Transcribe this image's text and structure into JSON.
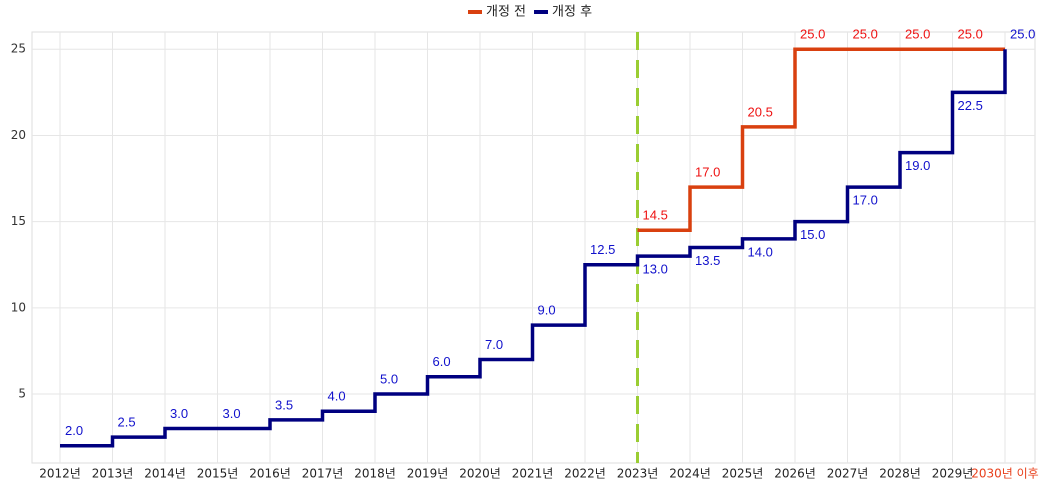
{
  "chart_data": {
    "type": "step",
    "categories": [
      "2012년",
      "2013년",
      "2014년",
      "2015년",
      "2016년",
      "2017년",
      "2018년",
      "2019년",
      "2020년",
      "2021년",
      "2022년",
      "2023년",
      "2024년",
      "2025년",
      "2026년",
      "2027년",
      "2028년",
      "2029년",
      "2030년 이후"
    ],
    "series": [
      {
        "name": "개정 전",
        "color": "#d9400f",
        "label_color": "#ee1111",
        "values": [
          null,
          null,
          null,
          null,
          null,
          null,
          null,
          null,
          null,
          null,
          null,
          14.5,
          17.0,
          20.5,
          25.0,
          25.0,
          25.0,
          25.0,
          25.0
        ],
        "value_labels": [
          null,
          null,
          null,
          null,
          null,
          null,
          null,
          null,
          null,
          null,
          null,
          "14.5",
          "17.0",
          "20.5",
          "25.0",
          "25.0",
          "25.0",
          "25.0",
          null
        ]
      },
      {
        "name": "개정 후",
        "color": "#000080",
        "label_color": "#1111cc",
        "values": [
          2.0,
          2.5,
          3.0,
          3.0,
          3.5,
          4.0,
          5.0,
          6.0,
          7.0,
          9.0,
          12.5,
          13.0,
          13.5,
          14.0,
          15.0,
          17.0,
          19.0,
          22.5,
          25.0
        ],
        "value_labels": [
          "2.0",
          "2.5",
          "3.0",
          "3.0",
          "3.5",
          "4.0",
          "5.0",
          "6.0",
          "7.0",
          "9.0",
          "12.5",
          "13.0",
          "13.5",
          "14.0",
          "15.0",
          "17.0",
          "19.0",
          "22.5",
          "25.0"
        ]
      }
    ],
    "ylim": [
      1,
      26
    ],
    "yticks": [
      5,
      10,
      15,
      20,
      25
    ],
    "grid": true,
    "legend": "top",
    "vline": {
      "category": "2023년",
      "color": "#9acd32"
    },
    "highlight": {
      "category": "2030년 이후",
      "color": "#e8401c"
    }
  }
}
